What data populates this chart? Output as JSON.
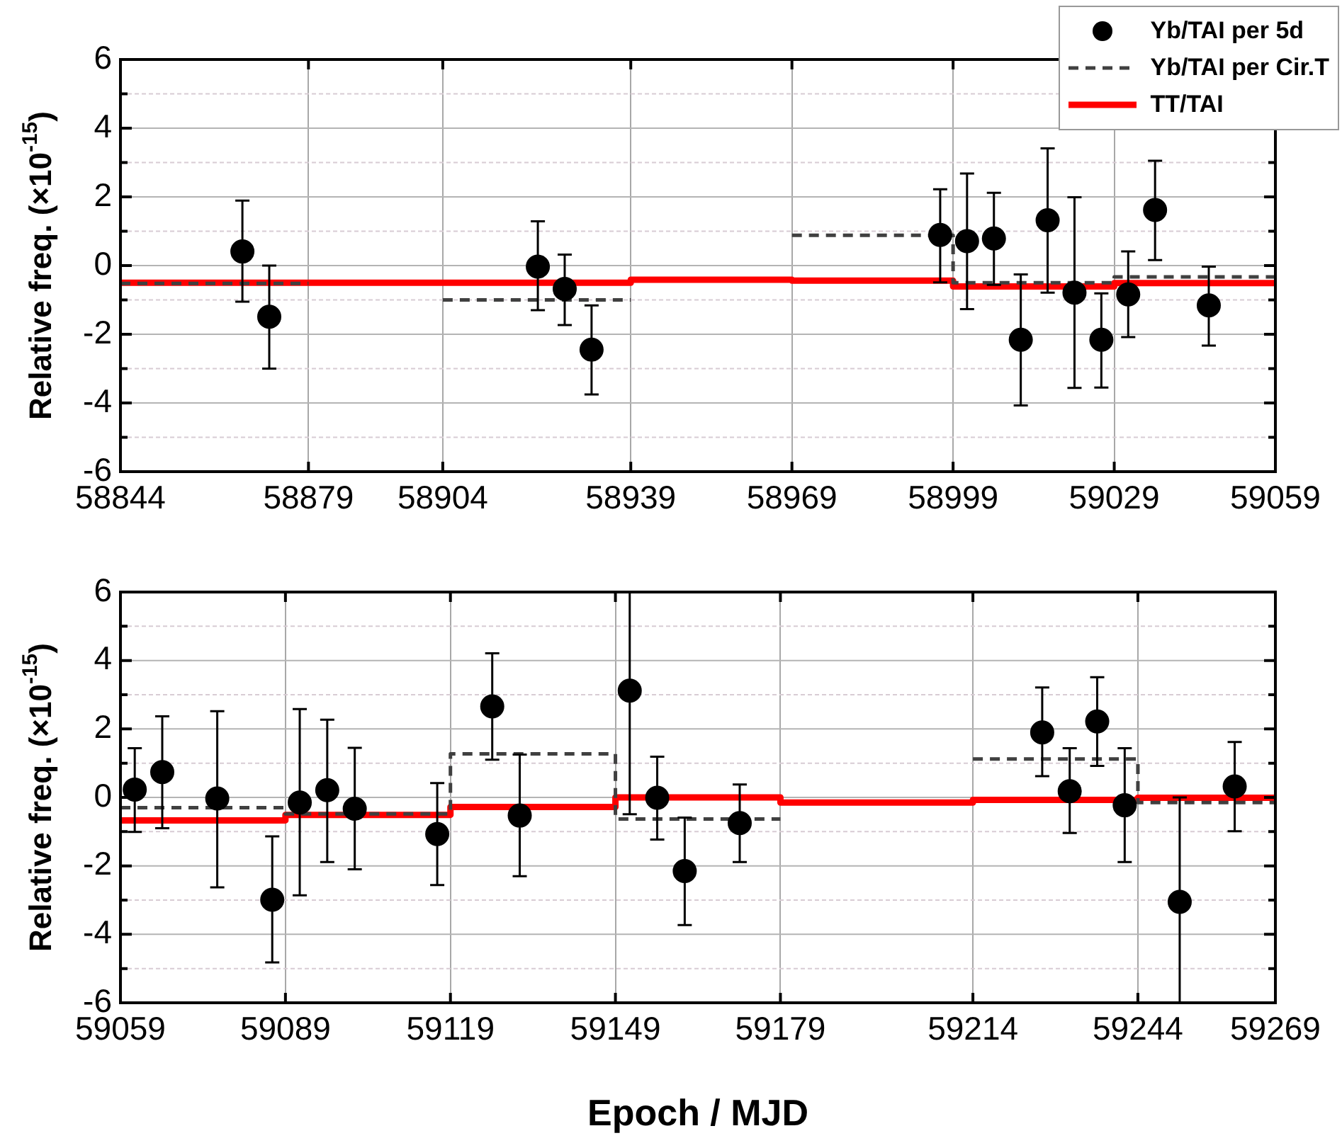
{
  "chart_data": [
    {
      "type": "scatter",
      "ylabel": "Relative freq. (×10$^{-15}$)",
      "xlim": [
        58844,
        59059
      ],
      "xticks": [
        58844,
        58879,
        58904,
        58939,
        58969,
        58999,
        59029,
        59059
      ],
      "ylim": [
        -6,
        6
      ],
      "yticks": [
        -6,
        {
          "value": -5,
          "label": null
        },
        -4,
        {
          "value": -3,
          "label": null
        },
        -2,
        {
          "value": -1,
          "label": null
        },
        0,
        {
          "value": 1,
          "label": null
        },
        2,
        {
          "value": 3,
          "label": null
        },
        4,
        {
          "value": 5,
          "label": null
        },
        6
      ],
      "grid": true,
      "legend": "top right",
      "series": [
        {
          "name": "Yb/TAI per 5d",
          "type": "scatter",
          "marker": "circle",
          "color": "#000000",
          "x": [
            58866.7,
            58871.7,
            58921.7,
            58926.7,
            58931.7,
            58996.6,
            59001.6,
            59006.6,
            59011.6,
            59016.6,
            59021.6,
            59026.6,
            59031.6,
            59036.6,
            59046.6
          ],
          "values": [
            0.41,
            -1.49,
            -0.03,
            -0.68,
            -2.45,
            0.89,
            0.71,
            0.79,
            -2.16,
            1.32,
            -0.79,
            -2.16,
            -0.84,
            1.62,
            -1.16
          ],
          "errors": [
            [
              -1.05,
              1.89
            ],
            [
              -3.0,
              0
            ],
            [
              -1.3,
              1.29
            ],
            [
              -1.73,
              0.32
            ],
            [
              -3.75,
              -1.16
            ],
            [
              -0.49,
              2.22
            ],
            [
              -1.27,
              2.68
            ],
            [
              -0.56,
              2.12
            ],
            [
              -4.07,
              -0.26
            ],
            [
              -0.79,
              3.41
            ],
            [
              -3.56,
              1.99
            ],
            [
              -3.55,
              -0.81
            ],
            [
              -2.08,
              0.41
            ],
            [
              0.16,
              3.05
            ],
            [
              -2.33,
              -0.03
            ]
          ]
        },
        {
          "name": "Yb/TAI per Cir.T",
          "type": "line",
          "line_style": "dashed",
          "color": "#404040",
          "x": [
            58844,
            58879
          ],
          "values": [
            -0.52,
            -0.52
          ]
        },
        {
          "type": "line",
          "line_style": "dashed",
          "color": "#404040",
          "x": [
            58904,
            58939
          ],
          "values": [
            -1.0,
            -1.0
          ]
        },
        {
          "type": "line",
          "line_style": "dashed",
          "color": "#404040",
          "x": [
            58969,
            58999,
            58999,
            59029,
            59029,
            59059
          ],
          "values": [
            0.88,
            0.88,
            -0.5,
            -0.5,
            -0.33,
            -0.33
          ]
        },
        {
          "name": "TT/TAI",
          "type": "line",
          "line_style": "solid",
          "color": "#ff0000",
          "x": [
            58844,
            58939,
            58939,
            58969,
            58969,
            58999,
            58999,
            59029,
            59029,
            59059
          ],
          "values": [
            -0.5,
            -0.5,
            -0.41,
            -0.41,
            -0.44,
            -0.44,
            -0.61,
            -0.61,
            -0.51,
            -0.51
          ]
        }
      ]
    },
    {
      "type": "scatter",
      "xlabel": "Epoch / MJD",
      "ylabel": "Relative freq. (×10$^{-15}$)",
      "xlim": [
        59059,
        59269
      ],
      "xticks": [
        59059,
        59089,
        59119,
        59149,
        59179,
        59214,
        59244,
        59269
      ],
      "ylim": [
        -6,
        6
      ],
      "yticks": [
        -6,
        {
          "value": -5,
          "label": null
        },
        -4,
        {
          "value": -3,
          "label": null
        },
        -2,
        {
          "value": -1,
          "label": null
        },
        0,
        {
          "value": 1,
          "label": null
        },
        2,
        {
          "value": 3,
          "label": null
        },
        4,
        {
          "value": 5,
          "label": null
        },
        6
      ],
      "grid": true,
      "series": [
        {
          "type": "scatter",
          "marker": "circle",
          "color": "#000000",
          "x": [
            59061.6,
            59066.6,
            59076.6,
            59086.6,
            59091.6,
            59096.6,
            59101.6,
            59116.6,
            59126.6,
            59131.6,
            59151.6,
            59156.6,
            59161.6,
            59171.6,
            59226.6,
            59231.6,
            59236.6,
            59241.6,
            59251.6,
            59261.6
          ],
          "values": [
            0.23,
            0.74,
            -0.03,
            -2.99,
            -0.15,
            0.21,
            -0.33,
            -1.07,
            2.66,
            -0.53,
            3.12,
            -0.01,
            -2.15,
            -0.75,
            1.9,
            0.18,
            2.22,
            -0.23,
            -3.05,
            0.32
          ],
          "errors": [
            [
              -1.01,
              1.44
            ],
            [
              -0.9,
              2.37
            ],
            [
              -2.63,
              2.52
            ],
            [
              -4.82,
              -1.14
            ],
            [
              -2.86,
              2.58
            ],
            [
              -1.89,
              2.27
            ],
            [
              -2.1,
              1.45
            ],
            [
              -2.56,
              0.42
            ],
            [
              1.1,
              4.21
            ],
            [
              -2.3,
              1.25
            ],
            [
              -0.49,
              6
            ],
            [
              -1.23,
              1.19
            ],
            [
              -3.73,
              -0.59
            ],
            [
              -1.89,
              0.38
            ],
            [
              0.62,
              3.21
            ],
            [
              -1.04,
              1.44
            ],
            [
              0.92,
              3.51
            ],
            [
              -1.89,
              1.44
            ],
            [
              -6,
              0
            ],
            [
              -0.99,
              1.62
            ]
          ]
        },
        {
          "type": "line",
          "line_style": "dashed",
          "color": "#404040",
          "x": [
            59059,
            59089,
            59089,
            59119,
            59119,
            59149,
            59149,
            59179
          ],
          "values": [
            -0.3,
            -0.3,
            -0.48,
            -0.48,
            1.27,
            1.27,
            -0.63,
            -0.63
          ]
        },
        {
          "type": "line",
          "line_style": "dashed",
          "color": "#404040",
          "x": [
            59214,
            59244,
            59244,
            59269
          ],
          "values": [
            1.12,
            1.12,
            -0.15,
            -0.15
          ]
        },
        {
          "type": "line",
          "line_style": "solid",
          "color": "#ff0000",
          "x": [
            59059,
            59089,
            59089,
            59119,
            59119,
            59149,
            59149,
            59179,
            59179,
            59214,
            59214,
            59244,
            59244,
            59269
          ],
          "values": [
            -0.67,
            -0.67,
            -0.51,
            -0.51,
            -0.28,
            -0.28,
            0,
            0,
            -0.15,
            -0.15,
            -0.07,
            -0.07,
            -0.01,
            -0.01
          ]
        }
      ]
    }
  ]
}
